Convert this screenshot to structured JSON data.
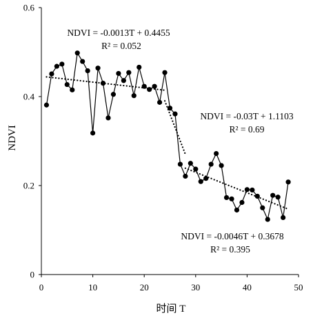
{
  "chart_data": {
    "type": "line",
    "xlabel": "时间 T",
    "ylabel": "NDVI",
    "xlim": [
      0,
      50
    ],
    "ylim": [
      0,
      0.6
    ],
    "x_ticks": [
      0,
      10,
      20,
      30,
      40,
      50
    ],
    "y_ticks": [
      0,
      0.2,
      0.4,
      0.6
    ],
    "x_tick_labels": [
      "0",
      "10",
      "20",
      "30",
      "40",
      "50"
    ],
    "y_tick_labels": [
      "0",
      "0.2",
      "0.4",
      "0.6"
    ],
    "grid": false,
    "legend": "none",
    "series": [
      {
        "x": [
          1,
          2,
          3,
          4,
          5,
          6,
          7,
          8,
          9,
          10,
          11,
          12,
          13,
          14,
          15,
          16,
          17,
          18,
          19,
          20,
          21,
          22,
          23,
          24,
          25,
          26,
          27,
          28,
          29,
          30,
          31,
          32,
          33,
          34,
          35,
          36,
          37,
          38,
          39,
          40,
          41,
          42,
          43,
          44,
          45,
          46,
          47,
          48
        ],
        "values": [
          0.381,
          0.451,
          0.468,
          0.473,
          0.427,
          0.415,
          0.498,
          0.479,
          0.458,
          0.318,
          0.464,
          0.43,
          0.352,
          0.405,
          0.452,
          0.436,
          0.454,
          0.402,
          0.466,
          0.423,
          0.416,
          0.423,
          0.387,
          0.454,
          0.374,
          0.361,
          0.248,
          0.221,
          0.25,
          0.237,
          0.209,
          0.216,
          0.248,
          0.272,
          0.245,
          0.173,
          0.17,
          0.145,
          0.162,
          0.191,
          0.19,
          0.176,
          0.15,
          0.124,
          0.178,
          0.174,
          0.128,
          0.208
        ]
      }
    ],
    "trendlines": [
      {
        "x_range": [
          1,
          24
        ],
        "slope": -0.0013,
        "intercept": 0.4455
      },
      {
        "x_range": [
          24,
          28
        ],
        "slope": -0.03,
        "intercept": 1.1103
      },
      {
        "x_range": [
          28,
          48
        ],
        "slope": -0.0046,
        "intercept": 0.3678
      }
    ],
    "annotations": [
      {
        "equation": "NDVI = -0.0013T + 0.4455",
        "r2": "R² = 0.052"
      },
      {
        "equation": "NDVI = -0.03T + 1.1103",
        "r2": "R² = 0.69"
      },
      {
        "equation": "NDVI = -0.0046T + 0.3678",
        "r2": "R² = 0.395"
      }
    ]
  }
}
